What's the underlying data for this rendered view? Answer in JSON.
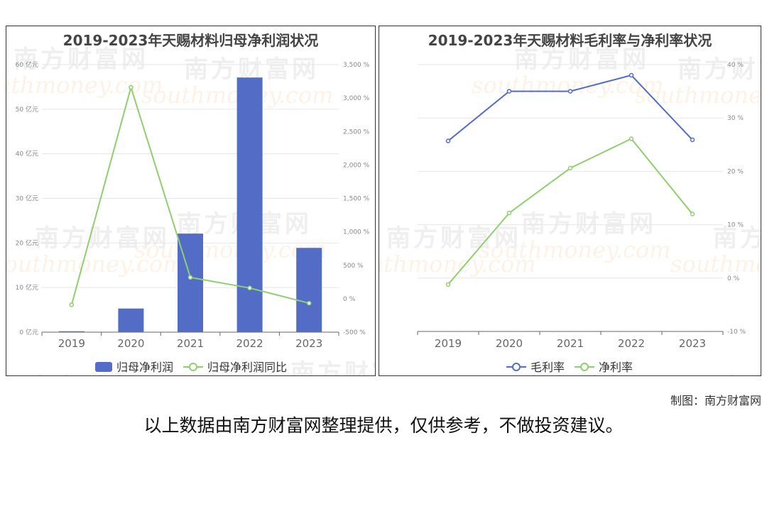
{
  "chart_data": [
    {
      "type": "bar",
      "title": "2019-2023年天赐材料归母净利润状况",
      "categories": [
        "2019",
        "2020",
        "2021",
        "2022",
        "2023"
      ],
      "series": [
        {
          "name": "归母净利润",
          "type": "bar",
          "axis": "left",
          "color": "#536dc6",
          "values": [
            0.2,
            5.3,
            22.1,
            57.1,
            18.9
          ]
        },
        {
          "name": "归母净利润同比",
          "type": "line",
          "axis": "right",
          "color": "#8fcf6f",
          "values": [
            -92,
            3160,
            318,
            160,
            -67
          ]
        }
      ],
      "yaxis_left": {
        "ylim": [
          0,
          60
        ],
        "ticks": [
          0,
          10,
          20,
          30,
          40,
          50,
          60
        ],
        "tick_labels": [
          "0 亿元",
          "10 亿元",
          "20 亿元",
          "30 亿元",
          "40 亿元",
          "50 亿元",
          "60 亿元"
        ]
      },
      "yaxis_right": {
        "ylim": [
          -500,
          3500
        ],
        "ticks": [
          -500,
          0,
          500,
          1000,
          1500,
          2000,
          2500,
          3000,
          3500
        ],
        "tick_labels": [
          "-500 %",
          "0 %",
          "500 %",
          "1,000 %",
          "1,500 %",
          "2,000 %",
          "2,500 %",
          "3,000 %",
          "3,500 %"
        ]
      },
      "grid": true,
      "legend": "bottom"
    },
    {
      "type": "line",
      "title": "2019-2023年天赐材料毛利率与净利率状况",
      "categories": [
        "2019",
        "2020",
        "2021",
        "2022",
        "2023"
      ],
      "series": [
        {
          "name": "毛利率",
          "color": "#536dc6",
          "values": [
            25.7,
            35.0,
            35.0,
            38.0,
            25.9
          ]
        },
        {
          "name": "净利率",
          "color": "#8fcf6f",
          "values": [
            -1.2,
            12.2,
            20.6,
            26.1,
            12.0
          ]
        }
      ],
      "yaxis_right": {
        "ylim": [
          -10,
          40
        ],
        "ticks": [
          -10,
          0,
          10,
          20,
          30,
          40
        ],
        "tick_labels": [
          "-10 %",
          "0 %",
          "10 %",
          "20 %",
          "30 %",
          "40 %"
        ]
      },
      "grid": true,
      "legend": "bottom"
    }
  ],
  "watermark": {
    "cn": "南方财富网",
    "en": "southmoney.com"
  },
  "credit": "制图：南方财富网",
  "disclaimer": "以上数据由南方财富网整理提供，仅供参考，不做投资建议。"
}
